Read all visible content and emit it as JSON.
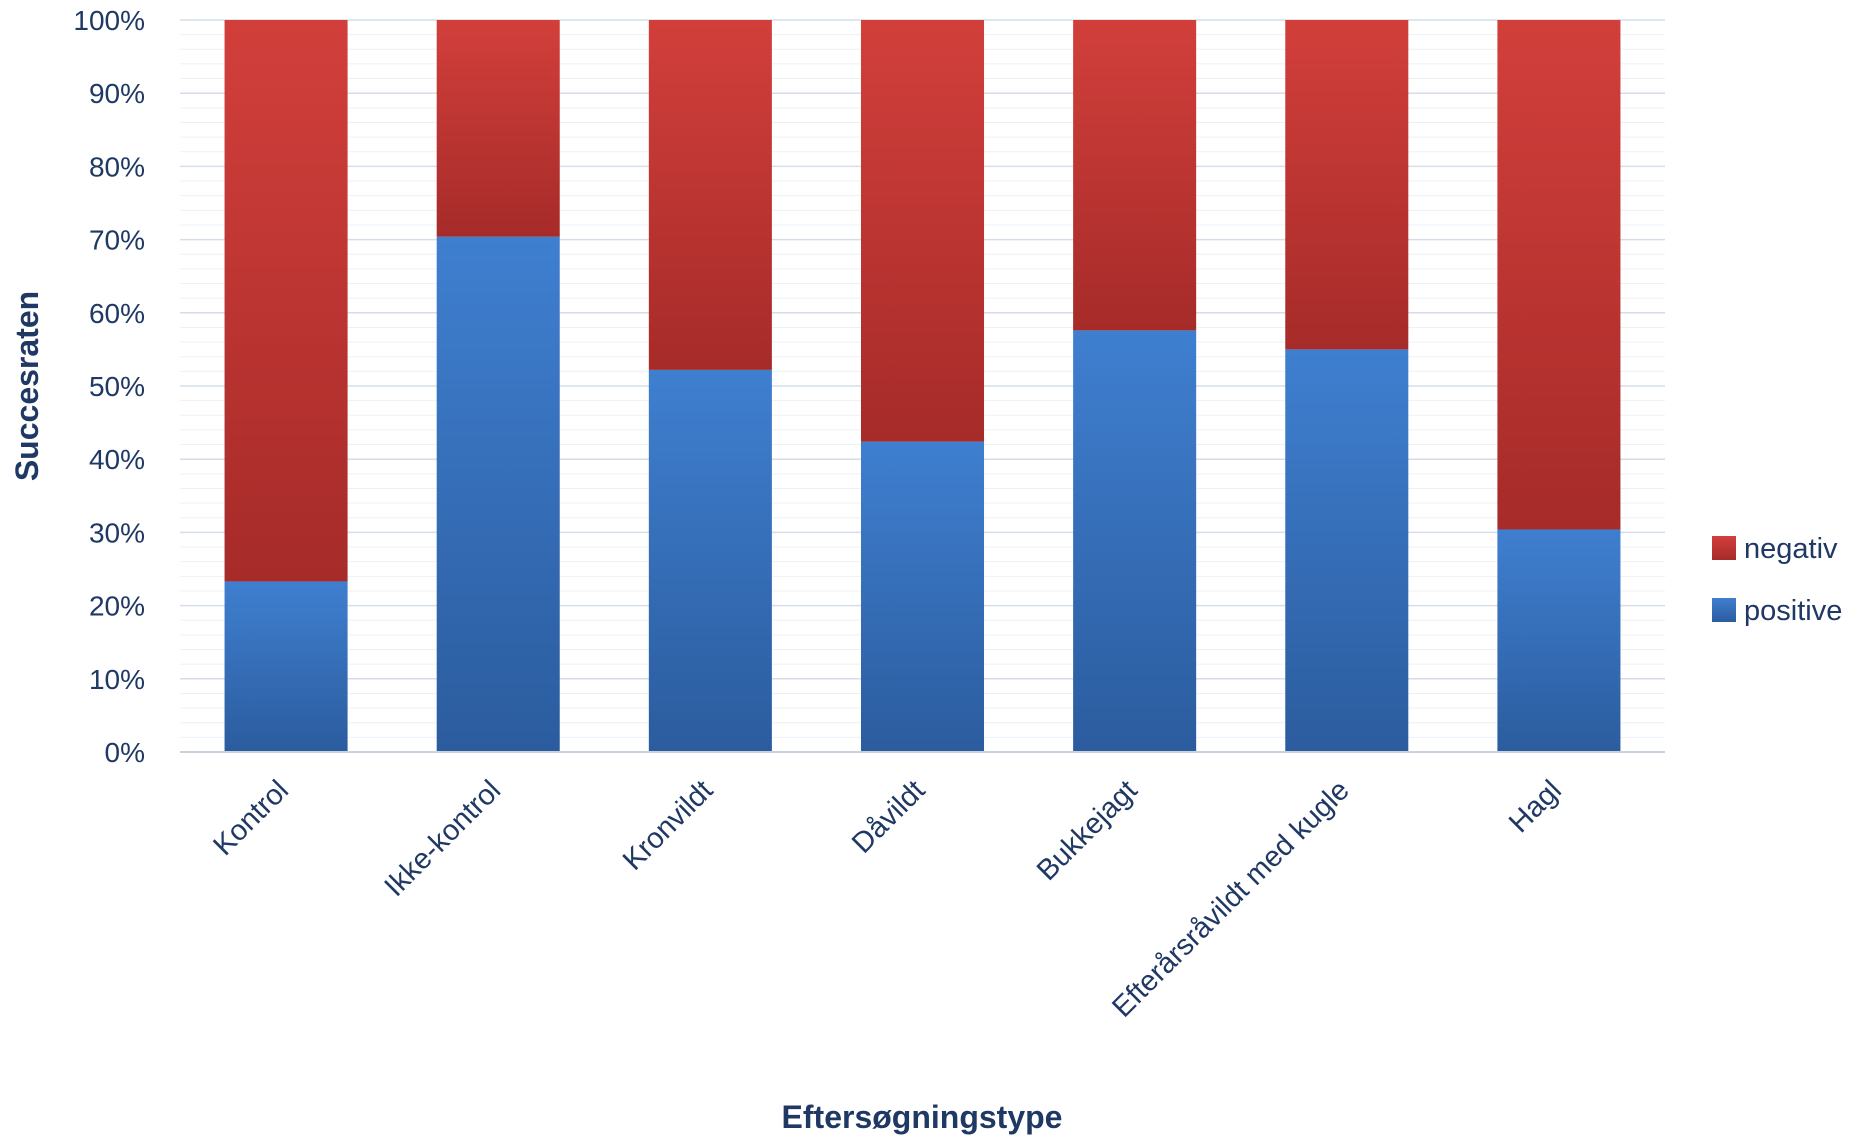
{
  "chart_data": {
    "type": "bar",
    "stacked": true,
    "title": "",
    "xlabel": "Eftersøgningstype",
    "ylabel": "Succesraten",
    "ylim": [
      0,
      100
    ],
    "y_ticks": [
      "0%",
      "10%",
      "20%",
      "30%",
      "40%",
      "50%",
      "60%",
      "70%",
      "80%",
      "90%",
      "100%"
    ],
    "categories": [
      "Kontrol",
      "Ikke-kontrol",
      "Kronvildt",
      "Dåvildt",
      "Bukkejagt",
      "Efterårsråvildt med kugle",
      "Hagl"
    ],
    "series": [
      {
        "name": "positive",
        "values": [
          23.3,
          70.4,
          52.2,
          42.4,
          57.6,
          55.0,
          30.4
        ],
        "color": "#3a74c4"
      },
      {
        "name": "negativ",
        "values": [
          76.7,
          29.6,
          47.8,
          57.6,
          42.4,
          45.0,
          69.6
        ],
        "color": "#c53a37"
      }
    ],
    "legend": {
      "position": "right",
      "order": [
        "negativ",
        "positive"
      ]
    },
    "grid": true
  }
}
